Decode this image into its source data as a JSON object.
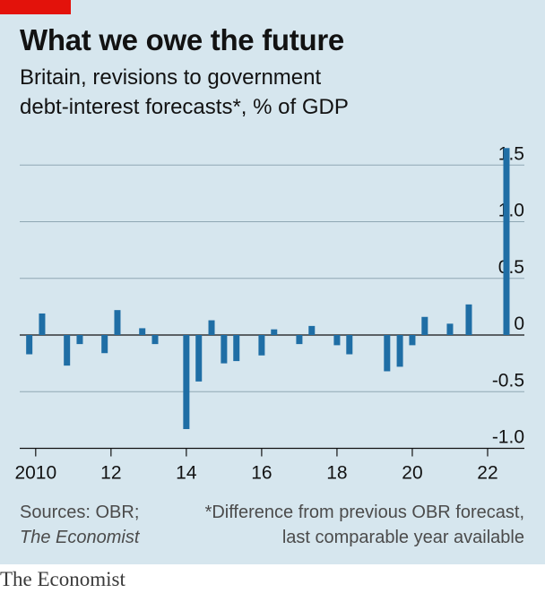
{
  "header": {
    "title": "What we owe the future",
    "subtitle_line1": "Britain, revisions to government",
    "subtitle_line2": "debt-interest forecasts*, % of GDP"
  },
  "footer": {
    "source_line1": "Sources: OBR;",
    "source_line2": "The Economist",
    "note_line1": "*Difference from previous OBR forecast,",
    "note_line2": "last comparable year available"
  },
  "brand": "The Economist",
  "colors": {
    "bar": "#1f6ea5",
    "background": "#d6e6ee",
    "accent": "#e3120b"
  },
  "chart_data": {
    "type": "bar",
    "title": "What we owe the future",
    "subtitle": "Britain, revisions to government debt-interest forecasts*, % of GDP",
    "xlabel": "",
    "ylabel": "",
    "ylim": [
      -1.0,
      1.5
    ],
    "xlim": [
      2009.6,
      2023.0
    ],
    "yticks": [
      {
        "value": 1.5,
        "label": "1.5"
      },
      {
        "value": 1.0,
        "label": "1.0"
      },
      {
        "value": 0.5,
        "label": "0.5"
      },
      {
        "value": 0,
        "label": "0"
      },
      {
        "value": -0.5,
        "label": "-0.5"
      },
      {
        "value": -1.0,
        "label": "-1.0"
      }
    ],
    "xticks": [
      {
        "value": 2010,
        "label": "2010"
      },
      {
        "value": 2012,
        "label": "12"
      },
      {
        "value": 2014,
        "label": "14"
      },
      {
        "value": 2016,
        "label": "16"
      },
      {
        "value": 2018,
        "label": "18"
      },
      {
        "value": 2020,
        "label": "20"
      },
      {
        "value": 2022,
        "label": "22"
      }
    ],
    "grid": true,
    "points": [
      {
        "x": 2009.83,
        "y": -0.17
      },
      {
        "x": 2010.17,
        "y": 0.19
      },
      {
        "x": 2010.83,
        "y": -0.27
      },
      {
        "x": 2011.17,
        "y": -0.08
      },
      {
        "x": 2011.83,
        "y": -0.16
      },
      {
        "x": 2012.17,
        "y": 0.22
      },
      {
        "x": 2012.83,
        "y": 0.06
      },
      {
        "x": 2013.17,
        "y": -0.08
      },
      {
        "x": 2014.0,
        "y": -0.83
      },
      {
        "x": 2014.33,
        "y": -0.41
      },
      {
        "x": 2014.67,
        "y": 0.13
      },
      {
        "x": 2015.0,
        "y": -0.25
      },
      {
        "x": 2015.33,
        "y": -0.23
      },
      {
        "x": 2016.0,
        "y": -0.18
      },
      {
        "x": 2016.33,
        "y": 0.05
      },
      {
        "x": 2017.0,
        "y": -0.08
      },
      {
        "x": 2017.33,
        "y": 0.08
      },
      {
        "x": 2018.0,
        "y": -0.09
      },
      {
        "x": 2018.33,
        "y": -0.17
      },
      {
        "x": 2019.33,
        "y": -0.32
      },
      {
        "x": 2019.67,
        "y": -0.28
      },
      {
        "x": 2020.0,
        "y": -0.09
      },
      {
        "x": 2020.33,
        "y": 0.16
      },
      {
        "x": 2021.0,
        "y": 0.1
      },
      {
        "x": 2021.5,
        "y": 0.27
      },
      {
        "x": 2022.5,
        "y": 1.65
      }
    ]
  }
}
